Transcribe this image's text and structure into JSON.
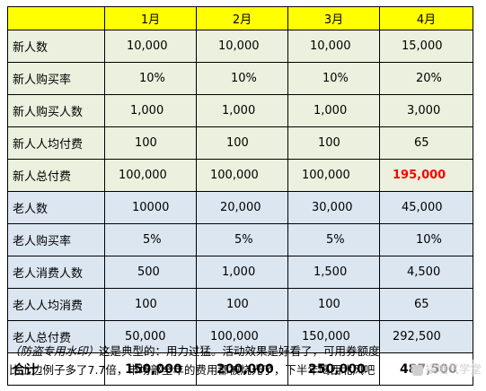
{
  "columns": [
    "",
    "1月",
    "2月",
    "3月",
    "4月"
  ],
  "rows": [
    {
      "label": "新人数",
      "values": [
        "10,000",
        "10,000",
        "10,000",
        "15,000"
      ],
      "group": "new"
    },
    {
      "label": "新人购买率",
      "values": [
        "10%",
        "10%",
        "10%",
        "20%"
      ],
      "group": "new"
    },
    {
      "label": "新人购买人数",
      "values": [
        "1,000",
        "1,000",
        "1,000",
        "3,000"
      ],
      "group": "new"
    },
    {
      "label": "新人人均付费",
      "values": [
        "100",
        "100",
        "100",
        "65"
      ],
      "group": "new"
    },
    {
      "label": "新人总付费",
      "values": [
        "100,000",
        "100,000",
        "100,000",
        "195,000"
      ],
      "group": "new"
    },
    {
      "label": "老人数",
      "values": [
        "10000",
        "20,000",
        "30,000",
        "45,000"
      ],
      "group": "old"
    },
    {
      "label": "老人购买率",
      "values": [
        "5%",
        "5%",
        "5%",
        "10%"
      ],
      "group": "old"
    },
    {
      "label": "老人消费人数",
      "values": [
        "500",
        "1,000",
        "1,500",
        "4,500"
      ],
      "group": "old"
    },
    {
      "label": "老人人均消费",
      "values": [
        "100",
        "100",
        "100",
        "65"
      ],
      "group": "old"
    },
    {
      "label": "老人总付费",
      "values": [
        "50,000",
        "100,000",
        "150,000",
        "292,500"
      ],
      "group": "old"
    }
  ],
  "total": {
    "label": "合计",
    "values": [
      "150,000",
      "200,000",
      "250,000",
      "487,500"
    ]
  },
  "highlight_color": "#ff0000",
  "caption": {
    "watermark_note": "（防盗专用水印）",
    "line1_rest": "这是典型的：用力过猛。活动效果是好看了，可用券额度",
    "line2": "比上边例子多了7.7倍，市场部全年的费用都被烧光了，下半年喝西北风吧"
  },
  "watermark": "接地气学堂"
}
